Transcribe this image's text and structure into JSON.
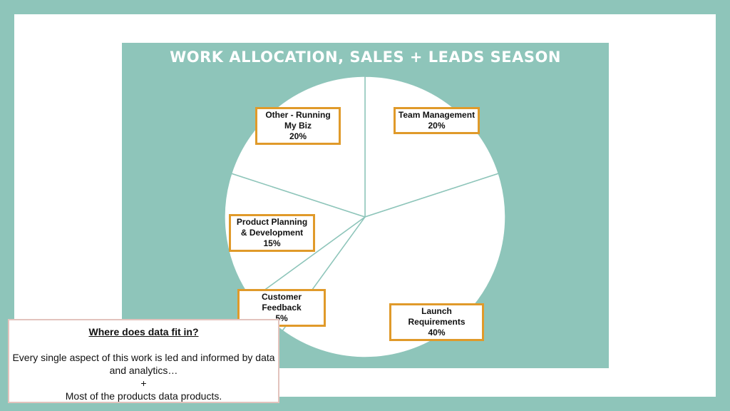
{
  "colors": {
    "background": "#8ec5ba",
    "slide": "#ffffff",
    "pie_fill": "#ffffff",
    "pie_divider": "#8ec5ba",
    "label_border": "#e09a2a",
    "note_border": "#e3c3bd"
  },
  "chart_data": {
    "type": "pie",
    "title": "WORK ALLOCATION, SALES + LEADS SEASON",
    "slices": [
      {
        "label": "Team Management",
        "value": 20,
        "value_label": "20%"
      },
      {
        "label": "Launch Requirements",
        "value": 40,
        "value_label": "40%"
      },
      {
        "label": "Customer Feedback",
        "value": 5,
        "value_label": "5%"
      },
      {
        "label": "Product Planning & Development",
        "value": 15,
        "value_label": "15%"
      },
      {
        "label": "Other - Running My Biz",
        "value": 20,
        "value_label": "20%"
      }
    ]
  },
  "note": {
    "heading": "Where does data fit in?",
    "line1": "Every single aspect of this work is led and informed by data and analytics…",
    "line2": "+",
    "line3": "Most of the products data products."
  }
}
